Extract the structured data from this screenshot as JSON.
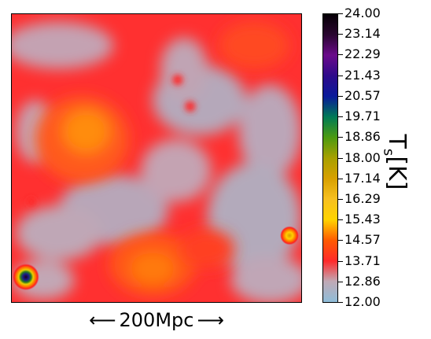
{
  "chart_data": {
    "type": "heatmap",
    "title": "",
    "colorbar": {
      "label_main": "T",
      "label_sub": "s",
      "label_unit": "[K]",
      "min": 12.0,
      "max": 24.0,
      "ticks": [
        "24.00",
        "23.14",
        "22.29",
        "21.43",
        "20.57",
        "19.71",
        "18.86",
        "18.00",
        "17.14",
        "16.29",
        "15.43",
        "14.57",
        "13.71",
        "12.86",
        "12.00"
      ],
      "colormap": [
        {
          "value": 12.0,
          "color": "#8fbdd9"
        },
        {
          "value": 12.86,
          "color": "#c0a9b5"
        },
        {
          "value": 13.71,
          "color": "#ff2a2a"
        },
        {
          "value": 14.57,
          "color": "#ff5a00"
        },
        {
          "value": 15.43,
          "color": "#ffd300"
        },
        {
          "value": 16.29,
          "color": "#f7c020"
        },
        {
          "value": 17.14,
          "color": "#d8a000"
        },
        {
          "value": 18.0,
          "color": "#a8a000"
        },
        {
          "value": 18.86,
          "color": "#4c9a10"
        },
        {
          "value": 19.71,
          "color": "#007a55"
        },
        {
          "value": 20.57,
          "color": "#0a1a9a"
        },
        {
          "value": 21.43,
          "color": "#2e0a8a"
        },
        {
          "value": 22.29,
          "color": "#6a0a8a"
        },
        {
          "value": 23.14,
          "color": "#2a0630"
        },
        {
          "value": 24.0,
          "color": "#050005"
        }
      ]
    },
    "scale_bar": {
      "left_arrow": "⟵",
      "text": "200Mpc",
      "right_arrow": "⟶"
    }
  }
}
